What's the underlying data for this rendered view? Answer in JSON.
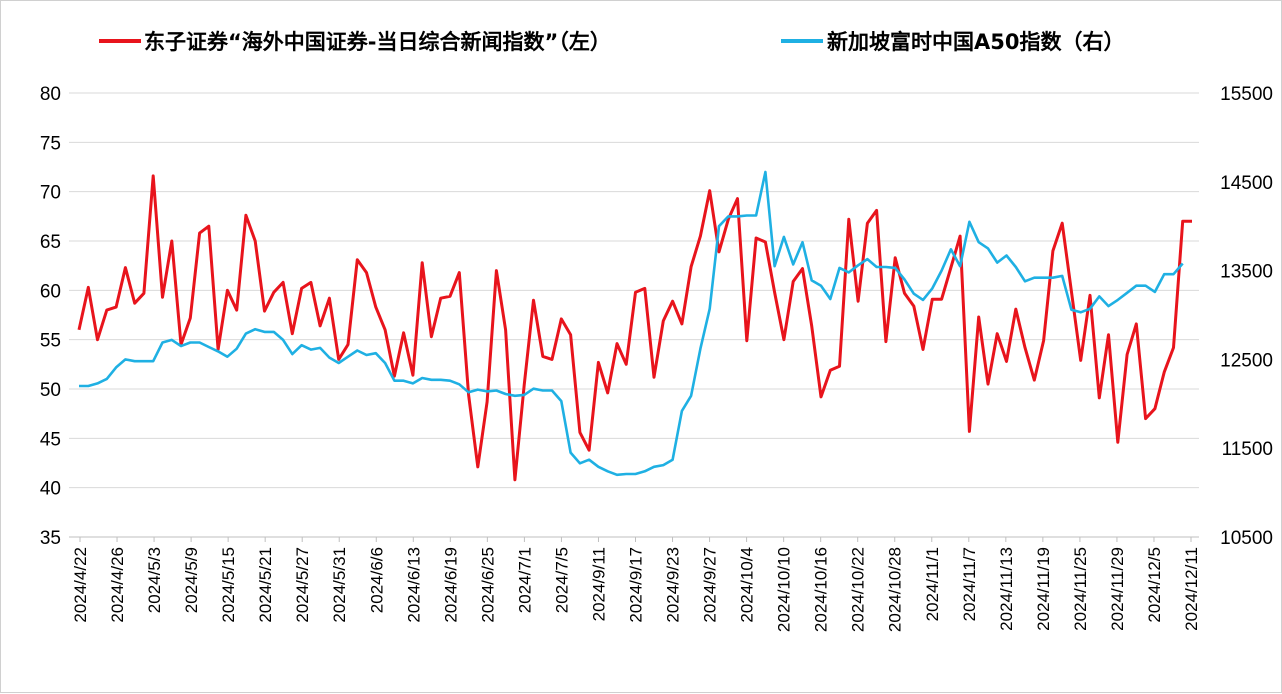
{
  "chart_data": {
    "type": "line",
    "legend": {
      "position": "top",
      "entries": [
        {
          "label": "东子证券“海外中国证券-当日综合新闻指数”（左）",
          "color": "#e8141c"
        },
        {
          "label": "新加坡富时中国A50指数（右）",
          "color": "#1fb0e3"
        }
      ]
    },
    "grid": true,
    "y_left": {
      "min": 35,
      "max": 80,
      "ticks": [
        "35",
        "40",
        "45",
        "50",
        "55",
        "60",
        "65",
        "70",
        "75",
        "80"
      ]
    },
    "y_right": {
      "min": 10500,
      "max": 15500,
      "ticks": [
        "10500",
        "11500",
        "12500",
        "13500",
        "14500",
        "15500"
      ]
    },
    "x_tick_labels": [
      "2024/4/22",
      "2024/4/26",
      "2024/5/3",
      "2024/5/9",
      "2024/5/15",
      "2024/5/21",
      "2024/5/27",
      "2024/5/31",
      "2024/6/6",
      "2024/6/13",
      "2024/6/19",
      "2024/6/25",
      "2024/7/1",
      "2024/7/5",
      "2024/9/11",
      "2024/9/17",
      "2024/9/23",
      "2024/9/27",
      "2024/10/4",
      "2024/10/10",
      "2024/10/16",
      "2024/10/22",
      "2024/10/28",
      "2024/11/1",
      "2024/11/7",
      "2024/11/13",
      "2024/11/19",
      "2024/11/25",
      "2024/11/29",
      "2024/12/5",
      "2024/12/11"
    ],
    "series": [
      {
        "name": "东子证券“海外中国证券-当日综合新闻指数”（左）",
        "axis": "left",
        "color": "#e8141c",
        "values": [
          56,
          60.3,
          55,
          58,
          58.3,
          62.3,
          58.7,
          59.7,
          71.6,
          59.3,
          65,
          54.5,
          57.2,
          65.8,
          66.5,
          54,
          60,
          58,
          67.6,
          65,
          57.9,
          59.8,
          60.8,
          55.6,
          60.2,
          60.8,
          56.4,
          59.2,
          53,
          54.5,
          63.1,
          61.8,
          58.3,
          56,
          51.3,
          55.7,
          51.4,
          62.8,
          55.3,
          59.2,
          59.4,
          61.8,
          49.4,
          42.1,
          48.7,
          62,
          56,
          40.8,
          50.4,
          59,
          53.3,
          53,
          57.1,
          55.5,
          45.6,
          43.8,
          52.7,
          49.6,
          54.6,
          52.5,
          59.8,
          60.2,
          51.2,
          56.9,
          58.9,
          56.6,
          62.4,
          65.5,
          70.1,
          63.9,
          67.2,
          69.3,
          54.9,
          65.3,
          64.9,
          59.8,
          55,
          60.9,
          62.2,
          56.4,
          49.2,
          51.9,
          52.3,
          67.2,
          58.9,
          66.8,
          68.1,
          54.8,
          63.3,
          59.7,
          58.4,
          54,
          59.1,
          59.1,
          62.3,
          65.5,
          45.7,
          57.3,
          50.5,
          55.6,
          52.8,
          58.1,
          54.2,
          50.9,
          54.9,
          64,
          66.8,
          59.9,
          52.9,
          59.5,
          49.1,
          55.5,
          44.6,
          53.5,
          56.6,
          47,
          48,
          51.7,
          54.2,
          67,
          67
        ]
      },
      {
        "name": "新加坡富时中国A50指数（右）",
        "axis": "right",
        "color": "#1fb0e3",
        "values": [
          12200,
          12200,
          12230,
          12280,
          12410,
          12500,
          12480,
          12480,
          12480,
          12690,
          12720,
          12650,
          12690,
          12690,
          12640,
          12590,
          12530,
          12620,
          12790,
          12840,
          12810,
          12810,
          12720,
          12560,
          12660,
          12610,
          12630,
          12520,
          12460,
          12530,
          12600,
          12550,
          12570,
          12460,
          12260,
          12260,
          12230,
          12290,
          12270,
          12270,
          12260,
          12220,
          12130,
          12160,
          12140,
          12150,
          12110,
          12090,
          12100,
          12170,
          12150,
          12150,
          12030,
          11450,
          11330,
          11370,
          11290,
          11240,
          11200,
          11210,
          11210,
          11240,
          11290,
          11310,
          11370,
          11920,
          12090,
          12620,
          13070,
          14000,
          14110,
          14110,
          14120,
          14120,
          14610,
          13550,
          13880,
          13570,
          13820,
          13390,
          13330,
          13180,
          13530,
          13480,
          13560,
          13630,
          13540,
          13540,
          13530,
          13400,
          13240,
          13170,
          13300,
          13500,
          13740,
          13550,
          14050,
          13820,
          13750,
          13590,
          13670,
          13540,
          13380,
          13420,
          13420,
          13420,
          13440,
          13060,
          13030,
          13070,
          13210,
          13100,
          13170,
          13250,
          13330,
          13330,
          13260,
          13460,
          13460,
          13580
        ]
      }
    ]
  }
}
